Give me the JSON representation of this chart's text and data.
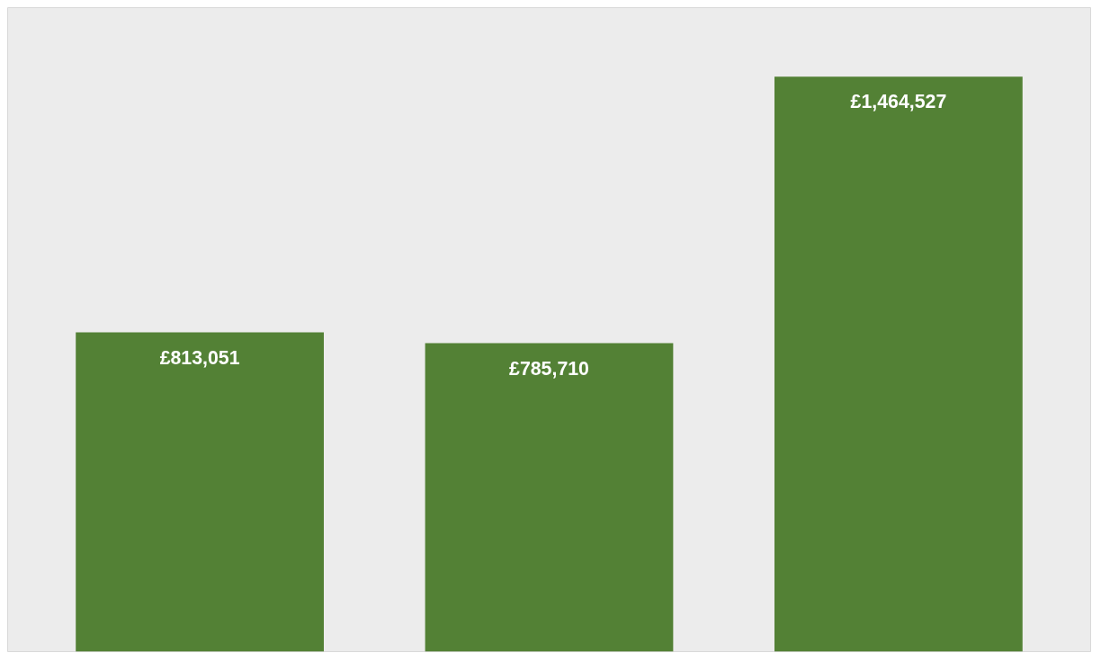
{
  "chart_data": {
    "type": "bar",
    "categories": [
      null,
      null,
      null
    ],
    "values": [
      813051,
      785710,
      1464527
    ],
    "color": "#538135",
    "value_labels": [
      "£813,051",
      "£785,710",
      "£1,464,527"
    ],
    "tick_labels": false
  }
}
